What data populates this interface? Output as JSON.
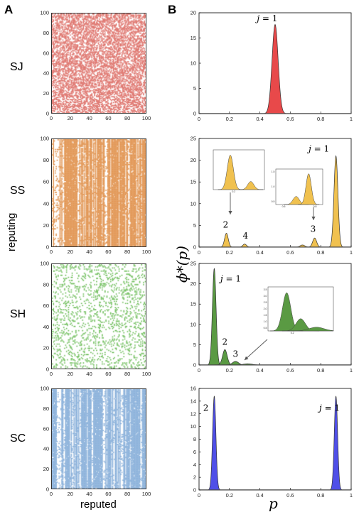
{
  "figure": {
    "panel_a": "A",
    "panel_b": "B",
    "xlabel_a": "reputed",
    "ylabel_a": "reputing",
    "xlabel_b": "p",
    "ylabel_b": "ϕ*(p)"
  },
  "matrices": [
    {
      "label": "SJ",
      "color": "#e07a73",
      "density": 0.5,
      "pattern": "random"
    },
    {
      "label": "SS",
      "color": "#e39a5a",
      "density": 0.8,
      "pattern": "columns"
    },
    {
      "label": "SH",
      "color": "#7cc46a",
      "density": 0.15,
      "pattern": "sparse"
    },
    {
      "label": "SC",
      "color": "#8fb4dc",
      "density": 0.5,
      "pattern": "columns"
    }
  ],
  "matrix_axis": {
    "ticks": [
      "0",
      "20",
      "40",
      "60",
      "80",
      "100"
    ]
  },
  "chart_data": [
    {
      "type": "area",
      "row": "SJ",
      "fill": "#e8494a",
      "xlim": [
        0,
        1
      ],
      "ylim": [
        0,
        20
      ],
      "xticks": [
        "0",
        "0.2",
        "0.4",
        "0.6",
        "0.8",
        "1"
      ],
      "yticks": [
        "0",
        "5",
        "10",
        "15",
        "20"
      ],
      "peaks": [
        {
          "center": 0.5,
          "height": 17.7,
          "width": 0.02
        }
      ],
      "annotations": [
        {
          "text": "j = 1",
          "x": 0.38,
          "y": 18.3
        }
      ]
    },
    {
      "type": "area",
      "row": "SS",
      "fill": "#f0c14f",
      "xlim": [
        0,
        1
      ],
      "ylim": [
        0,
        25
      ],
      "xticks": [
        "0",
        "0.2",
        "0.4",
        "0.6",
        "0.8",
        "1"
      ],
      "yticks": [
        "0",
        "5",
        "10",
        "15",
        "20",
        "25"
      ],
      "peaks": [
        {
          "center": 0.18,
          "height": 3.2,
          "width": 0.012
        },
        {
          "center": 0.3,
          "height": 0.7,
          "width": 0.012
        },
        {
          "center": 0.68,
          "height": 0.5,
          "width": 0.015
        },
        {
          "center": 0.76,
          "height": 2.1,
          "width": 0.013
        },
        {
          "center": 0.9,
          "height": 21.0,
          "width": 0.013
        }
      ],
      "annotations": [
        {
          "text": "j = 1",
          "x": 0.72,
          "y": 22.0
        },
        {
          "text": "2",
          "x": 0.175,
          "y": 4.5
        },
        {
          "text": "4",
          "x": 0.305,
          "y": 2.0
        },
        {
          "text": "3",
          "x": 0.75,
          "y": 3.5
        }
      ],
      "insets": [
        {
          "xticks": [
            "0.2"
          ],
          "yticks": []
        },
        {
          "xticks": [
            "0.6",
            "0.8"
          ],
          "yticks": [
            "1.5",
            "1.0",
            "0.5"
          ]
        }
      ]
    },
    {
      "type": "area",
      "row": "SH",
      "fill": "#5a9a43",
      "xlim": [
        0,
        1
      ],
      "ylim": [
        0,
        25
      ],
      "xticks": [
        "0",
        "0.2",
        "0.4",
        "0.6",
        "0.8",
        "1"
      ],
      "yticks": [
        "0",
        "5",
        "10",
        "15",
        "20",
        "25"
      ],
      "peaks": [
        {
          "center": 0.1,
          "height": 23.8,
          "width": 0.012
        },
        {
          "center": 0.17,
          "height": 3.8,
          "width": 0.015
        },
        {
          "center": 0.24,
          "height": 0.9,
          "width": 0.02
        },
        {
          "center": 0.32,
          "height": 0.3,
          "width": 0.03
        }
      ],
      "annotations": [
        {
          "text": "j = 1",
          "x": 0.14,
          "y": 20.5
        },
        {
          "text": "2",
          "x": 0.17,
          "y": 5.0
        },
        {
          "text": "3",
          "x": 0.24,
          "y": 2.0
        }
      ],
      "insets": [
        {
          "xticks": [
            "0.2"
          ],
          "yticks": [
            "3.5",
            "3.0",
            "2.5",
            "2.0",
            "1.5",
            "1.0",
            "0.5"
          ]
        }
      ]
    },
    {
      "type": "area",
      "row": "SC",
      "fill": "#4f4fe8",
      "xlim": [
        0,
        1
      ],
      "ylim": [
        0,
        16
      ],
      "xticks": [
        "0",
        "0.2",
        "0.4",
        "0.6",
        "0.8",
        "1"
      ],
      "yticks": [
        "0",
        "2",
        "4",
        "6",
        "8",
        "10",
        "12",
        "14",
        "16"
      ],
      "peaks": [
        {
          "center": 0.1,
          "height": 14.8,
          "width": 0.011
        },
        {
          "center": 0.9,
          "height": 14.8,
          "width": 0.011
        }
      ],
      "annotations": [
        {
          "text": "2",
          "x": 0.045,
          "y": 12.5
        },
        {
          "text": "j = 1",
          "x": 0.79,
          "y": 12.5
        }
      ]
    }
  ]
}
